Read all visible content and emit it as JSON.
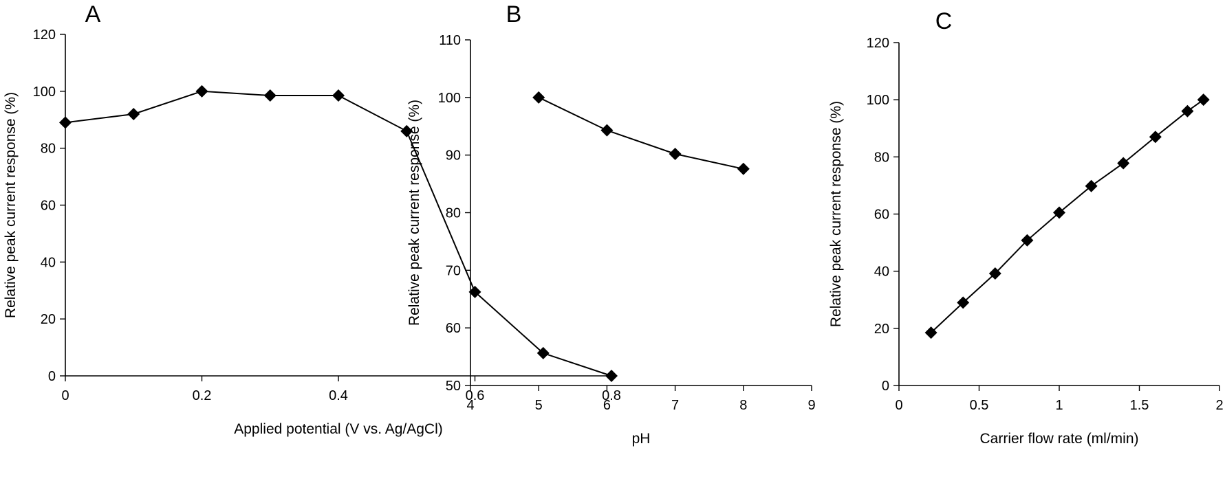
{
  "chart_data": [
    {
      "type": "line",
      "panel_label": "A",
      "xlabel": "Applied potential (V vs. Ag/AgCl)",
      "ylabel": "Relative peak current response (%)",
      "xlim": [
        0,
        0.8
      ],
      "ylim": [
        0,
        120
      ],
      "xticks": [
        0,
        0.2,
        0.4,
        0.6,
        0.8
      ],
      "yticks": [
        0,
        20,
        40,
        60,
        80,
        100,
        120
      ],
      "xtick_labels": [
        "0",
        "0.2",
        "0.4",
        "0.6",
        "0.8"
      ],
      "ytick_labels": [
        "0",
        "20",
        "40",
        "60",
        "80",
        "100",
        "120"
      ],
      "series": [
        {
          "name": "",
          "x": [
            0,
            0.1,
            0.2,
            0.3,
            0.4,
            0.5,
            0.6,
            0.7,
            0.8
          ],
          "y": [
            89,
            92,
            100,
            98.5,
            98.5,
            86,
            29.5,
            8,
            0
          ]
        }
      ],
      "marker": "diamond",
      "grid": false
    },
    {
      "type": "line",
      "panel_label": "B",
      "xlabel": "pH",
      "ylabel": "Relative peak current response (%)",
      "xlim": [
        4,
        9
      ],
      "ylim": [
        50,
        110
      ],
      "xticks": [
        4,
        5,
        6,
        7,
        8,
        9
      ],
      "yticks": [
        50,
        60,
        70,
        80,
        90,
        100,
        110
      ],
      "xtick_labels": [
        "4",
        "5",
        "6",
        "7",
        "8",
        "9"
      ],
      "ytick_labels": [
        "50",
        "60",
        "70",
        "80",
        "90",
        "100",
        "110"
      ],
      "series": [
        {
          "name": "",
          "x": [
            5,
            6,
            7,
            8
          ],
          "y": [
            100,
            94.3,
            90.2,
            87.6
          ]
        }
      ],
      "marker": "diamond",
      "grid": false
    },
    {
      "type": "line",
      "panel_label": "C",
      "xlabel": "Carrier flow rate (ml/min)",
      "ylabel": "Relative peak current response (%)",
      "xlim": [
        0,
        2
      ],
      "ylim": [
        0,
        120
      ],
      "xticks": [
        0,
        0.5,
        1,
        1.5,
        2
      ],
      "yticks": [
        0,
        20,
        40,
        60,
        80,
        100,
        120
      ],
      "xtick_labels": [
        "0",
        "0.5",
        "1",
        "1.5",
        "2"
      ],
      "ytick_labels": [
        "0",
        "20",
        "40",
        "60",
        "80",
        "100",
        "120"
      ],
      "series": [
        {
          "name": "",
          "x": [
            0.2,
            0.4,
            0.6,
            0.8,
            1.0,
            1.2,
            1.4,
            1.6,
            1.8,
            1.9
          ],
          "y": [
            18.5,
            29,
            39.2,
            50.8,
            60.5,
            69.8,
            77.8,
            87,
            96,
            100
          ]
        }
      ],
      "marker": "diamond",
      "grid": false
    }
  ],
  "colors": {
    "line": "#000000",
    "marker": "#000000",
    "axis": "#000000"
  }
}
